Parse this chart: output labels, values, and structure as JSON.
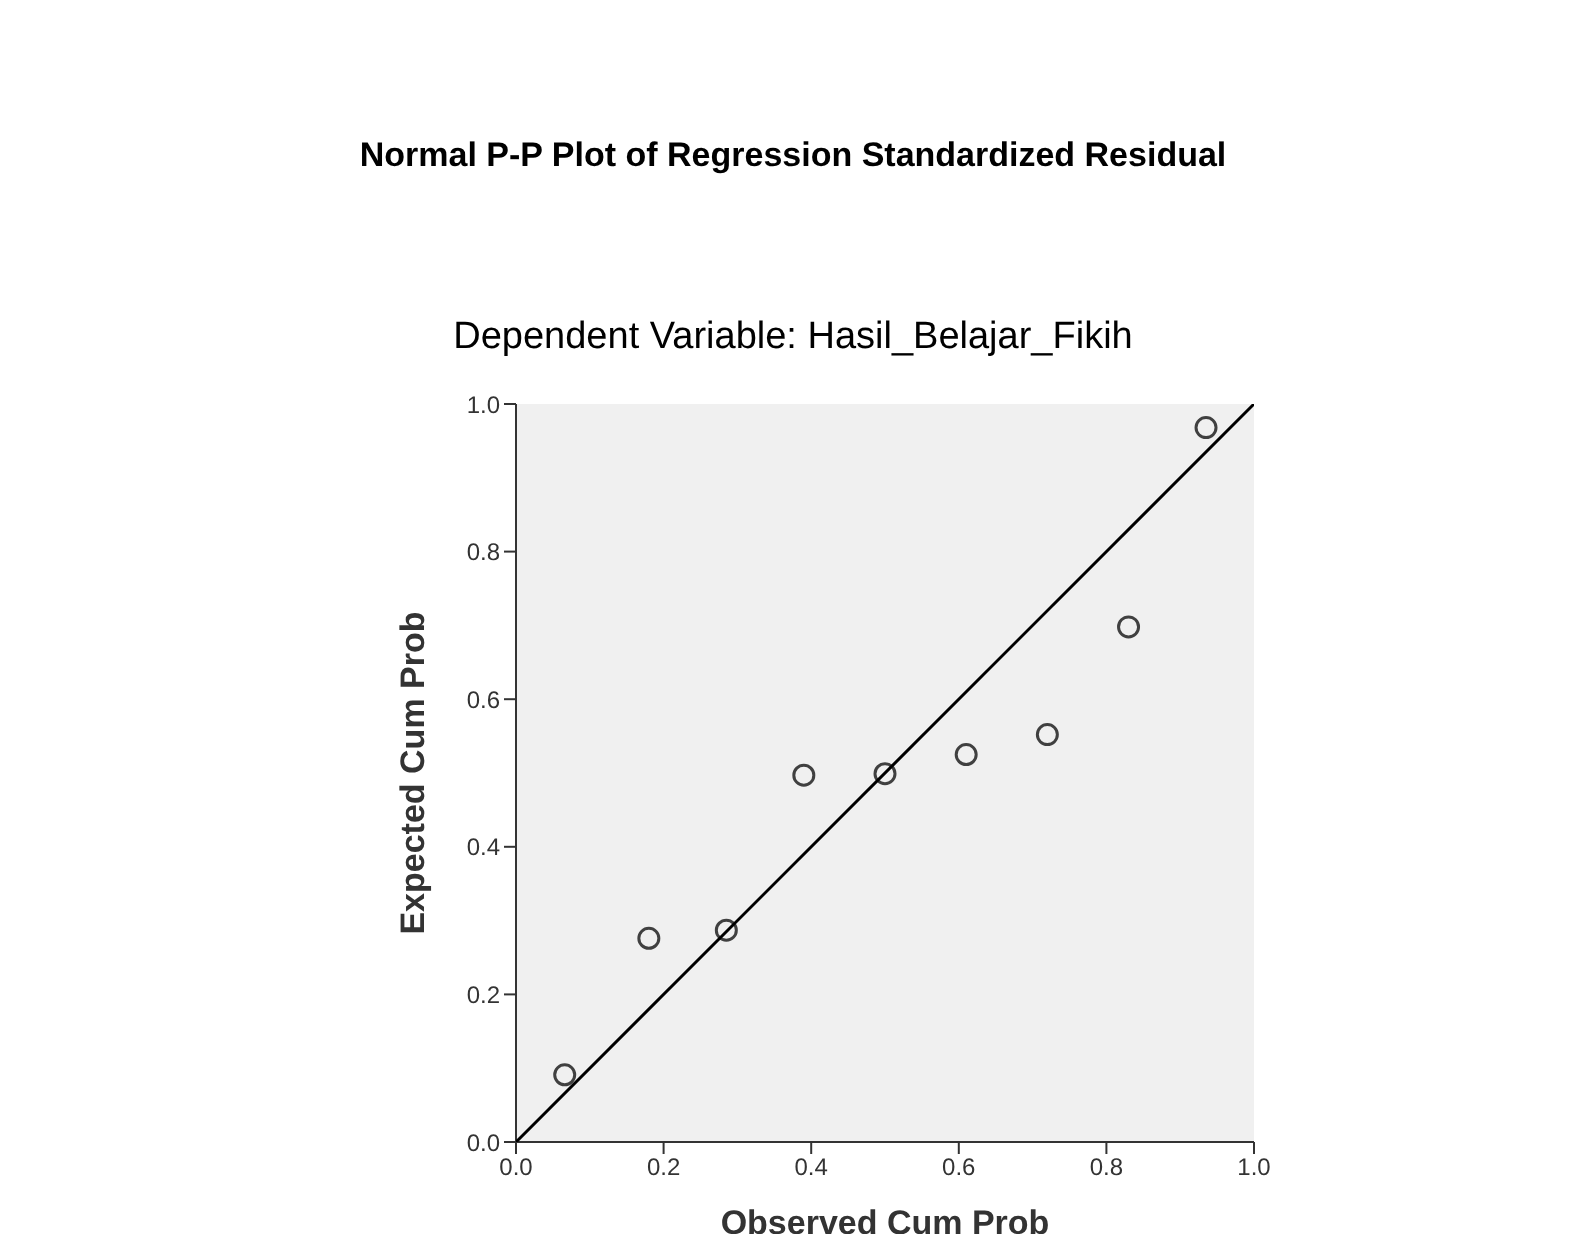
{
  "chart_data": {
    "type": "scatter",
    "title": "Normal P-P Plot of Regression Standardized Residual",
    "subtitle": "Dependent Variable: Hasil_Belajar_Fikih",
    "xlabel": "Observed Cum Prob",
    "ylabel": "Expected Cum Prob",
    "x": [
      0.066,
      0.18,
      0.285,
      0.39,
      0.5,
      0.61,
      0.72,
      0.83,
      0.935
    ],
    "series": [
      {
        "color": "#404040",
        "marker": "circle",
        "values": [
          0.091,
          0.276,
          0.287,
          0.497,
          0.499,
          0.525,
          0.552,
          0.698,
          0.968
        ]
      },
      {
        "type": "line",
        "color": "#000000",
        "marker": "none",
        "x": [
          0,
          1
        ],
        "values": [
          0,
          1
        ]
      }
    ],
    "xlim": [
      0,
      1
    ],
    "ylim": [
      0,
      1
    ],
    "xticks": [
      {
        "value": 0,
        "label": "0.0"
      },
      0.2,
      0.4,
      0.6,
      0.8,
      {
        "value": 1,
        "label": "1.0"
      }
    ],
    "yticks": [
      {
        "value": 0,
        "label": "0.0"
      },
      0.2,
      0.4,
      0.6,
      0.8,
      {
        "value": 1,
        "label": "1.0"
      }
    ],
    "grid": false,
    "legend": false
  }
}
